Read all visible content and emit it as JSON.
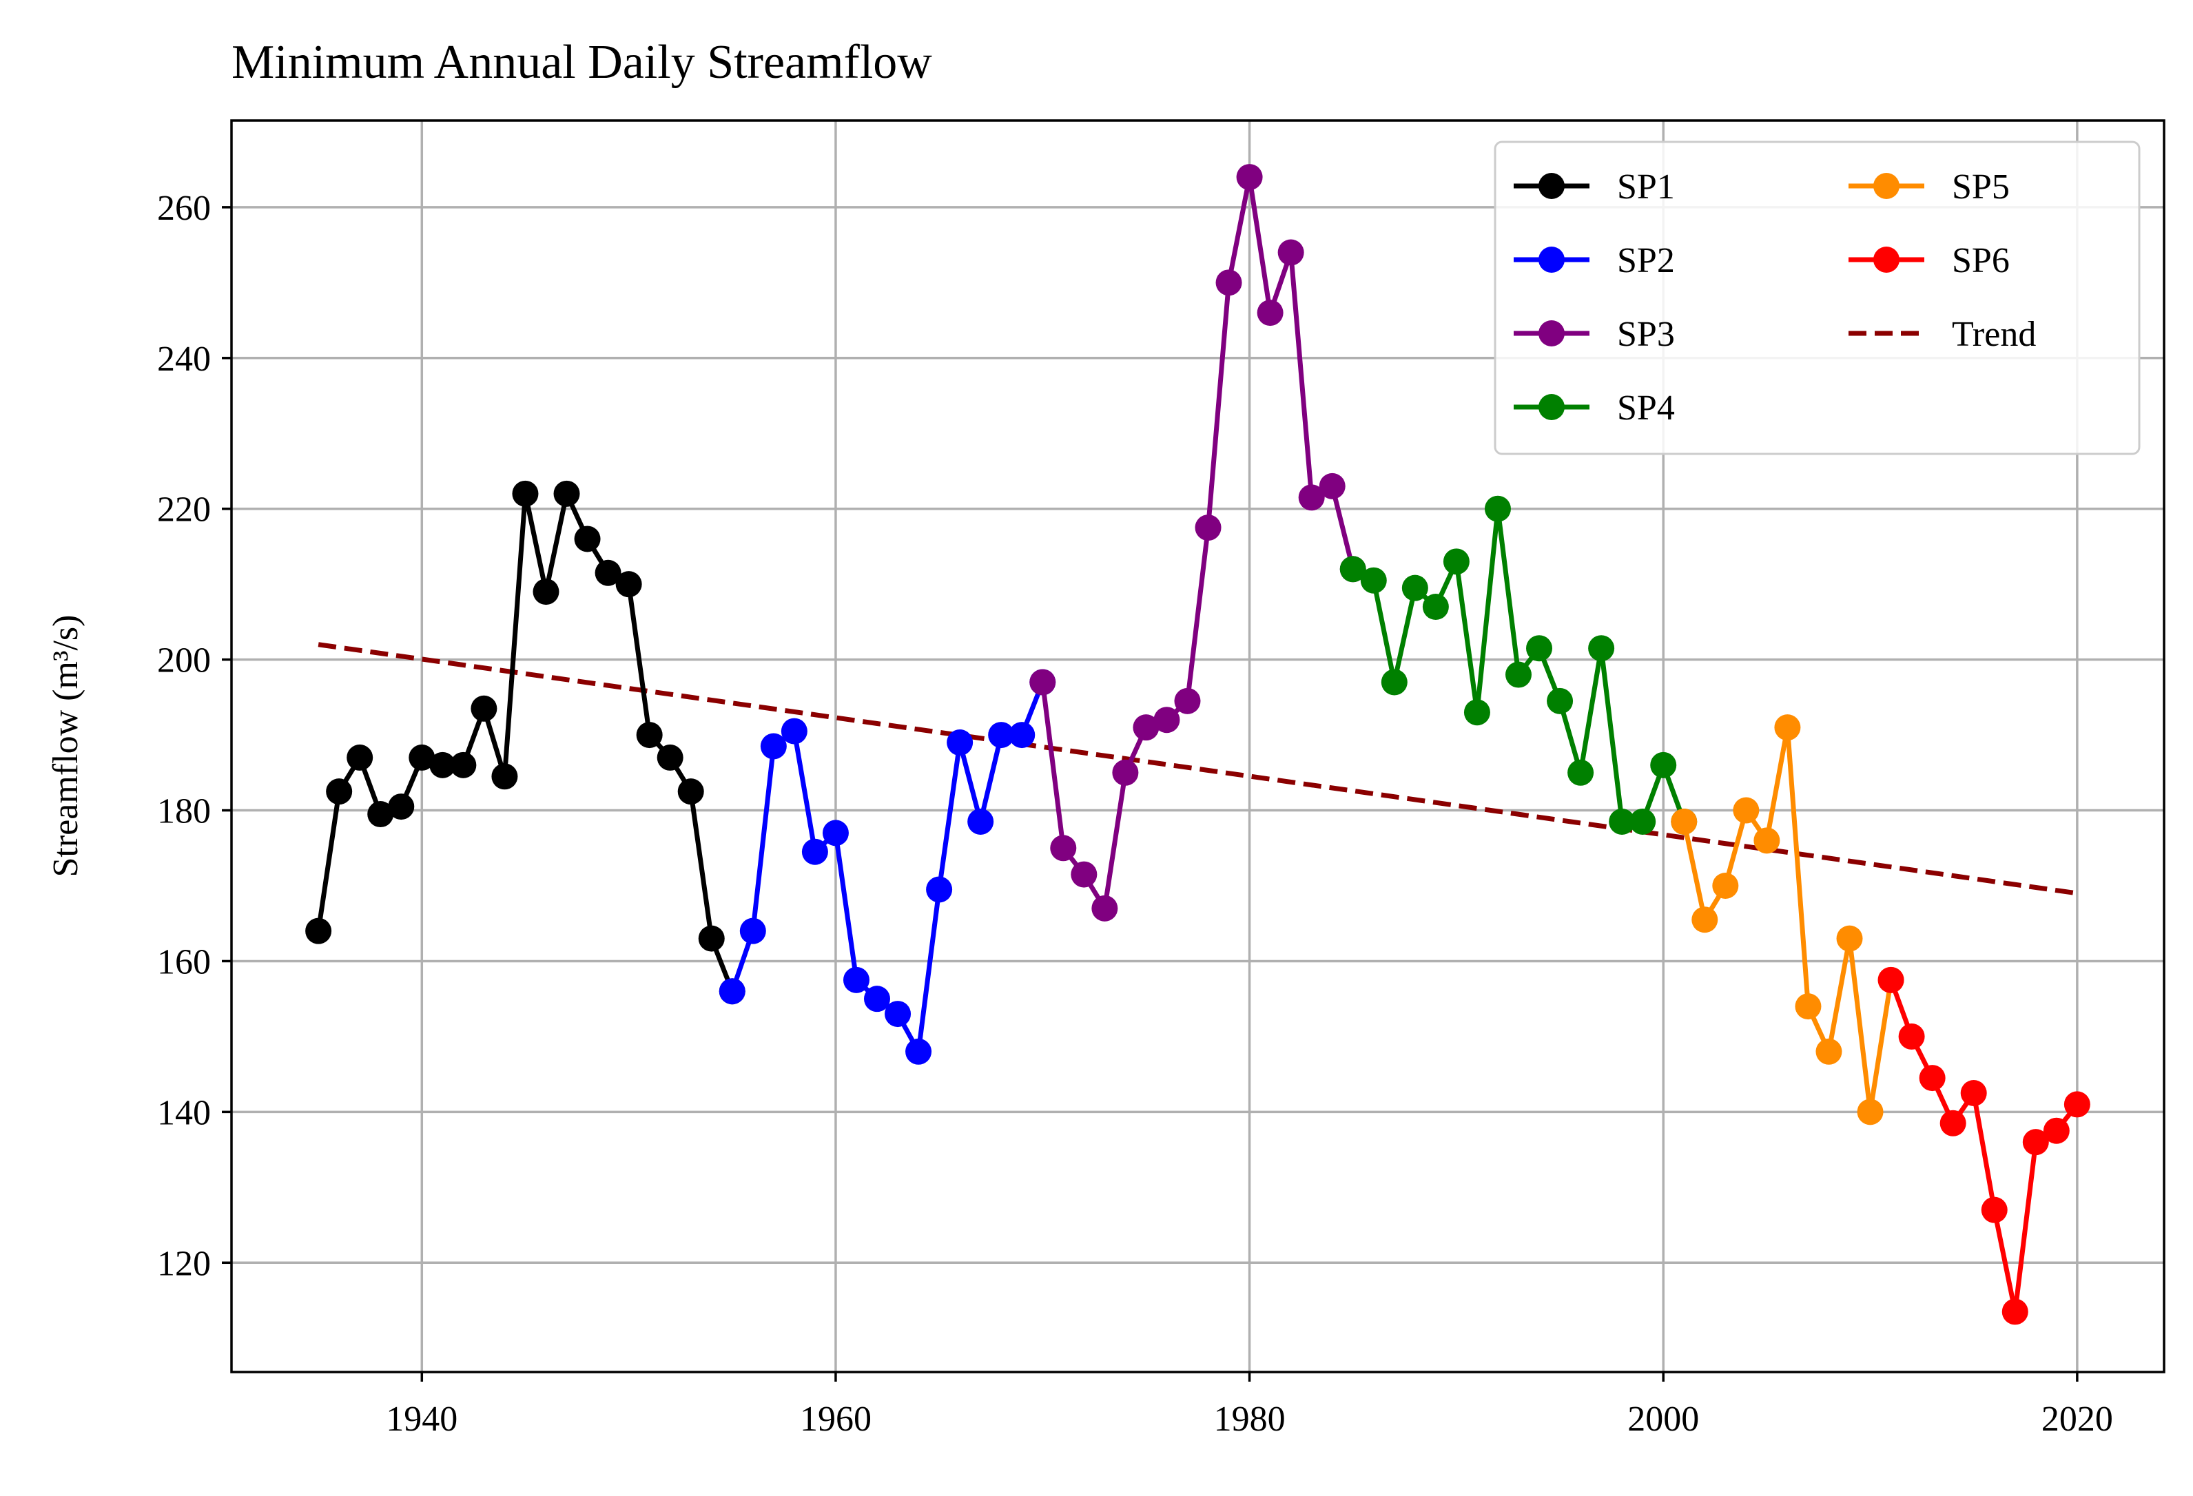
{
  "chart_data": {
    "type": "line",
    "title": "Minimum Annual Daily Streamflow",
    "xlabel": "",
    "ylabel": "Streamflow (m³/s)",
    "xlim": [
      1930.8,
      2024.2
    ],
    "ylim": [
      105.5,
      271.5
    ],
    "xticks": [
      1940,
      1960,
      1980,
      2000,
      2020
    ],
    "yticks": [
      120,
      140,
      160,
      180,
      200,
      220,
      240,
      260
    ],
    "grid": true,
    "legend": {
      "position": "top-right",
      "columns": 2
    },
    "series": [
      {
        "name": "SP1",
        "color": "#000000",
        "x": [
          1935,
          1936,
          1937,
          1938,
          1939,
          1940,
          1941,
          1942,
          1943,
          1944,
          1945,
          1946,
          1947,
          1948,
          1949,
          1950,
          1951,
          1952,
          1953,
          1954,
          1955
        ],
        "y": [
          164,
          182.5,
          187,
          179.5,
          180.5,
          187,
          186,
          186,
          193.5,
          184.5,
          222,
          209,
          222,
          216,
          211.5,
          210,
          190,
          187,
          182.5,
          163,
          156
        ]
      },
      {
        "name": "SP2",
        "color": "#0000ff",
        "x": [
          1955,
          1956,
          1957,
          1958,
          1959,
          1960,
          1961,
          1962,
          1963,
          1964,
          1965,
          1966,
          1967,
          1968,
          1969,
          1970
        ],
        "y": [
          156,
          164,
          188.5,
          190.5,
          174.5,
          177,
          157.5,
          155,
          153,
          148,
          169.5,
          189,
          178.5,
          190,
          190,
          197
        ]
      },
      {
        "name": "SP3",
        "color": "#800080",
        "x": [
          1970,
          1971,
          1972,
          1973,
          1974,
          1975,
          1976,
          1977,
          1978,
          1979,
          1980,
          1981,
          1982,
          1983,
          1984,
          1985
        ],
        "y": [
          197,
          175,
          171.5,
          167,
          185,
          191,
          192,
          194.5,
          217.5,
          250,
          264,
          246,
          254,
          221.5,
          223,
          212
        ]
      },
      {
        "name": "SP4",
        "color": "#008000",
        "x": [
          1985,
          1986,
          1987,
          1988,
          1989,
          1990,
          1991,
          1992,
          1993,
          1994,
          1995,
          1996,
          1997,
          1998,
          1999,
          2000,
          2001
        ],
        "y": [
          212,
          210.5,
          197,
          209.5,
          207,
          213,
          193,
          220,
          198,
          201.5,
          194.5,
          185,
          201.5,
          178.5,
          178.5,
          186,
          178.5
        ]
      },
      {
        "name": "SP5",
        "color": "#ff8c00",
        "x": [
          2001,
          2002,
          2003,
          2004,
          2005,
          2006,
          2007,
          2008,
          2009,
          2010,
          2011
        ],
        "y": [
          178.5,
          165.5,
          170,
          180,
          176,
          191,
          154,
          148,
          163,
          140,
          157.5
        ]
      },
      {
        "name": "SP6",
        "color": "#ff0000",
        "x": [
          2011,
          2012,
          2013,
          2014,
          2015,
          2016,
          2017,
          2018,
          2019,
          2020
        ],
        "y": [
          157.5,
          150,
          144.5,
          138.5,
          142.5,
          127,
          113.5,
          136,
          137.5,
          141
        ]
      }
    ],
    "trend": {
      "name": "Trend",
      "color": "#8b0000",
      "x": [
        1935,
        2020
      ],
      "y": [
        202,
        169
      ]
    }
  }
}
